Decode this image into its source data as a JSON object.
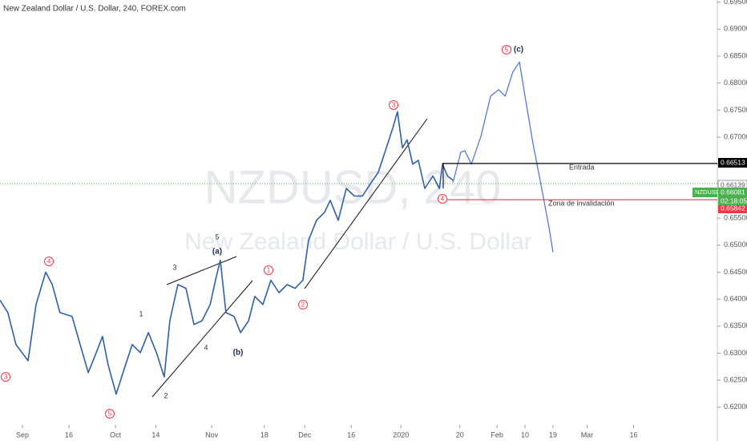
{
  "chart_data": {
    "type": "line",
    "title": "New Zealand Dollar / U.S. Dollar, 240, FOREX.com",
    "watermark": "NZDUSD, 240",
    "watermark_subtitle": "New Zealand Dollar / U.S. Dollar",
    "xlim": [
      -7.235,
      224.0
    ],
    "xticks": [
      {
        "value": 0,
        "label": "Sep"
      },
      {
        "value": 15,
        "label": "16"
      },
      {
        "value": 30,
        "label": "Oct"
      },
      {
        "value": 43,
        "label": "14"
      },
      {
        "value": 61,
        "label": "Nov"
      },
      {
        "value": 78,
        "label": "18"
      },
      {
        "value": 91,
        "label": "Dec"
      },
      {
        "value": 106,
        "label": "16"
      },
      {
        "value": 122,
        "label": "2020"
      },
      {
        "value": 141,
        "label": "20"
      },
      {
        "value": 153,
        "label": "Feb"
      },
      {
        "value": 162,
        "label": "10"
      },
      {
        "value": 171,
        "label": "19"
      },
      {
        "value": 182,
        "label": "Mar"
      },
      {
        "value": 197,
        "label": "16"
      }
    ],
    "ylim": [
      0.6167,
      0.6954
    ],
    "yticks": [
      {
        "value": 0.62,
        "label": "0.62000"
      },
      {
        "value": 0.625,
        "label": "0.62500"
      },
      {
        "value": 0.63,
        "label": "0.63000"
      },
      {
        "value": 0.635,
        "label": "0.63500"
      },
      {
        "value": 0.64,
        "label": "0.64000"
      },
      {
        "value": 0.645,
        "label": "0.64500"
      },
      {
        "value": 0.65,
        "label": "0.65000"
      },
      {
        "value": 0.655,
        "label": "0.65500"
      },
      {
        "value": 0.66,
        "label": "0.66000"
      },
      {
        "value": 0.665,
        "label": "0.66500"
      },
      {
        "value": 0.67,
        "label": "0.67000"
      },
      {
        "value": 0.675,
        "label": "0.67500"
      },
      {
        "value": 0.68,
        "label": "0.68000"
      },
      {
        "value": 0.685,
        "label": "0.68500"
      },
      {
        "value": 0.69,
        "label": "0.69000"
      },
      {
        "value": 0.695,
        "label": "0.69500"
      }
    ],
    "series": [
      {
        "color": "#2e5fa8",
        "x": [
          -7.2,
          -4.7,
          -2.1,
          1.8,
          4.4,
          7.5,
          9.6,
          12.1,
          16,
          18.6,
          21.2,
          23.8,
          25.8,
          27.6,
          30.2,
          32.8,
          35.4,
          38,
          40.6,
          43.2,
          45.7,
          47.5,
          50.1,
          52.7,
          55.3,
          57.9,
          60.5,
          62.5,
          63.8,
          65.6,
          68.2,
          70.3,
          72.9,
          74.9,
          77.5,
          80.1,
          82.7,
          85.3,
          87.9,
          90.4,
          92.2,
          94.8,
          97.4,
          99.2,
          101.8,
          104.4,
          107,
          109.6,
          112.1,
          114.7,
          117.3,
          119.4,
          120.9,
          122.5,
          124,
          125.8,
          127.6,
          129.7,
          132.3,
          134.4,
          135.4,
          137,
          138.8
        ],
        "values": [
          0.6398,
          0.6375,
          0.6316,
          0.6286,
          0.639,
          0.645,
          0.6427,
          0.6375,
          0.6368,
          0.6316,
          0.6264,
          0.6301,
          0.6331,
          0.6279,
          0.6224,
          0.6271,
          0.6316,
          0.6301,
          0.6338,
          0.6301,
          0.6256,
          0.636,
          0.6427,
          0.642,
          0.6353,
          0.636,
          0.639,
          0.6442,
          0.6472,
          0.6375,
          0.6368,
          0.6338,
          0.636,
          0.6405,
          0.639,
          0.6435,
          0.6412,
          0.6427,
          0.642,
          0.6435,
          0.6509,
          0.6546,
          0.6561,
          0.6583,
          0.6546,
          0.6605,
          0.6591,
          0.6591,
          0.6613,
          0.6635,
          0.668,
          0.6717,
          0.6747,
          0.668,
          0.6695,
          0.665,
          0.6657,
          0.6605,
          0.6628,
          0.6605,
          0.665,
          0.6628,
          0.662
        ]
      },
      {
        "color": "#4b6fd8",
        "x": [
          138.8,
          141.3,
          142.6,
          144.7,
          147.8,
          150.9,
          153.5,
          155.6,
          158.1,
          160.2,
          162,
          164.6,
          167.1,
          169.8,
          171
        ],
        "values": [
          0.6616,
          0.6672,
          0.6675,
          0.665,
          0.6702,
          0.6776,
          0.6788,
          0.6776,
          0.6821,
          0.6839,
          0.6776,
          0.6687,
          0.6613,
          0.6531,
          0.6487
        ]
      }
    ],
    "horizontal_lines": [
      {
        "value": 0.66513,
        "color": "#000000",
        "label": "Entrada"
      },
      {
        "value": 0.65842,
        "color": "#f23645",
        "label": "Zona de invalidación"
      }
    ],
    "reference_price": 0.66139,
    "current_price": {
      "value": 0.66081,
      "symbol": "NZDUSD",
      "countdown": "02:18:05",
      "color": "#4caf50"
    },
    "wave_labels": [
      "3",
      "4",
      "5",
      "1",
      "2",
      "3",
      "4",
      "5"
    ],
    "wave_notes": [
      "(c)",
      "5",
      "(a)",
      "3",
      "1",
      "4",
      "(b)",
      "2"
    ]
  }
}
